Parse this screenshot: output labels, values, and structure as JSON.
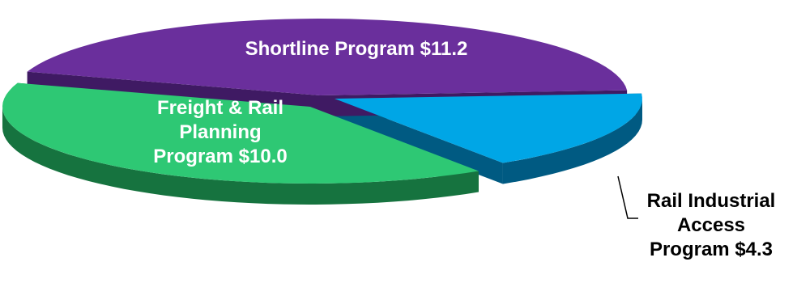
{
  "chart_data": {
    "type": "pie",
    "title": "",
    "unit": "$",
    "slices": [
      {
        "name": "Shortline Program",
        "value": 11.2,
        "label_lines": [
          "Shortline Program  $11.2"
        ],
        "top_color": "#6a2f9c",
        "side_color": "#3f1a63"
      },
      {
        "name": "Rail Industrial Access Program",
        "value": 4.3,
        "label_lines": [
          "Rail Industrial",
          "Access",
          "Program  $4.3"
        ],
        "top_color": "#00a6e6",
        "side_color": "#005a82"
      },
      {
        "name": "Freight & Rail Planning Program",
        "value": 10.0,
        "label_lines": [
          "Freight & Rail",
          "Planning",
          "Program  $10.0"
        ],
        "top_color": "#2ec874",
        "side_color": "#16733f"
      }
    ]
  }
}
